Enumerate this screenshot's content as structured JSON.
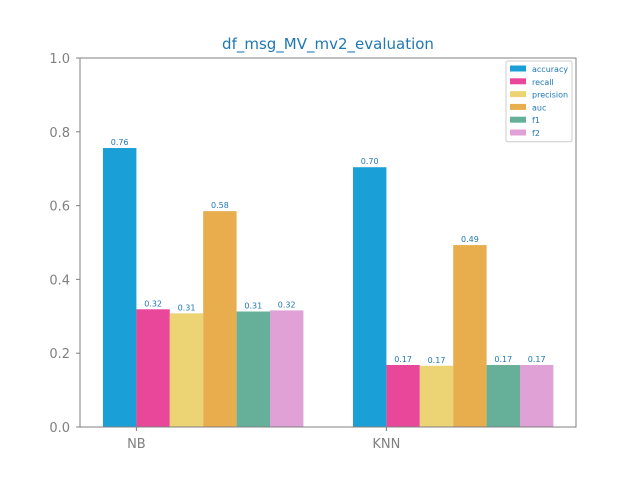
{
  "chart_data": {
    "type": "bar",
    "title": "df_msg_MV_mv2_evaluation",
    "xlabel": "",
    "ylabel": "",
    "categories": [
      "NB",
      "KNN"
    ],
    "ylim": [
      0,
      1.0
    ],
    "yticks": [
      "0.0",
      "0.2",
      "0.4",
      "0.6",
      "0.8",
      "1.0"
    ],
    "grid": false,
    "legend_position": "top-right",
    "series": [
      {
        "name": "accuracy",
        "color": "#1a9fd6",
        "values": [
          0.756,
          0.704
        ],
        "labels": [
          "0.76",
          "0.70"
        ]
      },
      {
        "name": "recall",
        "color": "#e8479a",
        "values": [
          0.319,
          0.168
        ],
        "labels": [
          "0.32",
          "0.17"
        ]
      },
      {
        "name": "precision",
        "color": "#ecd474",
        "values": [
          0.308,
          0.166
        ],
        "labels": [
          "0.31",
          "0.17"
        ]
      },
      {
        "name": "auc",
        "color": "#e8ad4d",
        "values": [
          0.585,
          0.493
        ],
        "labels": [
          "0.58",
          "0.49"
        ]
      },
      {
        "name": "f1",
        "color": "#66b09a",
        "values": [
          0.313,
          0.168
        ],
        "labels": [
          "0.31",
          "0.17"
        ]
      },
      {
        "name": "f2",
        "color": "#e0a2d6",
        "values": [
          0.316,
          0.168
        ],
        "labels": [
          "0.32",
          "0.17"
        ]
      }
    ]
  }
}
